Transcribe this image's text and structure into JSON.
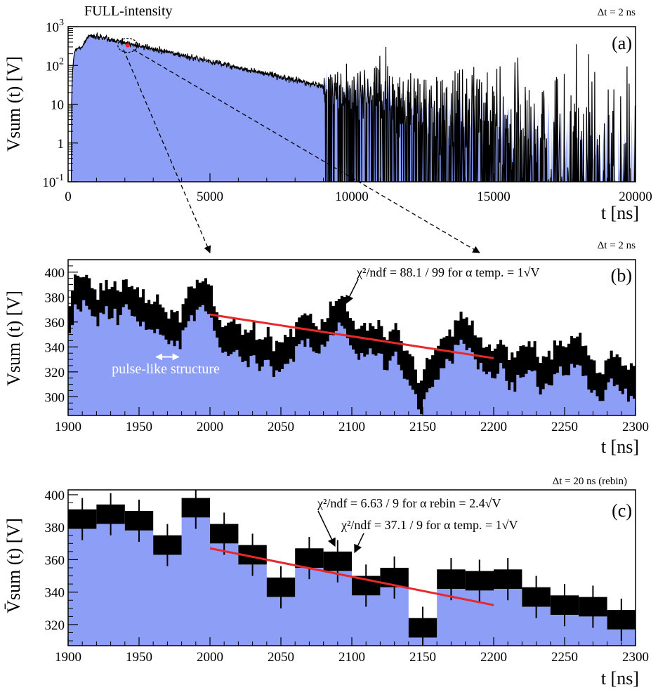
{
  "chart_data": [
    {
      "panel_label": "(a)",
      "type": "area",
      "title": "FULL-intensity",
      "bin_label": "Δt = 2 ns",
      "xlabel": "t [ns]",
      "ylabel": "Vsum (t) [V]",
      "yscale": "log",
      "xlim": [
        0,
        20000
      ],
      "ylim": [
        0.1,
        1000
      ],
      "x_ticks": [
        "0",
        "5000",
        "10000",
        "15000",
        "20000"
      ],
      "y_ticks": [
        "10^-1",
        "1",
        "10",
        "10^2",
        "10^3"
      ],
      "peak": {
        "x": 800,
        "y": 600
      },
      "decay": {
        "x_start": 800,
        "y_start": 600,
        "x_end": 20000,
        "y_end": 0.1,
        "noise_onset_x": 9000
      },
      "zoom_marker": {
        "x": 2100,
        "y": 330
      }
    },
    {
      "panel_label": "(b)",
      "type": "area",
      "bin_label": "Δt = 2 ns",
      "xlabel": "t [ns]",
      "ylabel": "Vsum (t) [V]",
      "xlim": [
        1900,
        2300
      ],
      "ylim": [
        285,
        410
      ],
      "x_ticks": [
        "1900",
        "1950",
        "2000",
        "2050",
        "2100",
        "2150",
        "2200",
        "2250",
        "2300"
      ],
      "y_ticks": [
        "300",
        "320",
        "340",
        "360",
        "380",
        "400"
      ],
      "anchors": [
        [
          1900,
          362
        ],
        [
          1905,
          382
        ],
        [
          1912,
          386
        ],
        [
          1920,
          372
        ],
        [
          1928,
          380
        ],
        [
          1935,
          374
        ],
        [
          1942,
          383
        ],
        [
          1950,
          370
        ],
        [
          1958,
          364
        ],
        [
          1965,
          362
        ],
        [
          1972,
          357
        ],
        [
          1978,
          352
        ],
        [
          1985,
          372
        ],
        [
          1992,
          382
        ],
        [
          2000,
          376
        ],
        [
          2007,
          350
        ],
        [
          2012,
          345
        ],
        [
          2018,
          352
        ],
        [
          2025,
          338
        ],
        [
          2030,
          344
        ],
        [
          2035,
          332
        ],
        [
          2040,
          346
        ],
        [
          2046,
          326
        ],
        [
          2052,
          334
        ],
        [
          2058,
          340
        ],
        [
          2063,
          352
        ],
        [
          2070,
          356
        ],
        [
          2075,
          344
        ],
        [
          2080,
          350
        ],
        [
          2085,
          360
        ],
        [
          2090,
          366
        ],
        [
          2095,
          364
        ],
        [
          2100,
          350
        ],
        [
          2105,
          342
        ],
        [
          2110,
          346
        ],
        [
          2118,
          345
        ],
        [
          2125,
          335
        ],
        [
          2132,
          345
        ],
        [
          2138,
          325
        ],
        [
          2143,
          320
        ],
        [
          2147,
          303
        ],
        [
          2150,
          305
        ],
        [
          2156,
          322
        ],
        [
          2162,
          330
        ],
        [
          2170,
          342
        ],
        [
          2178,
          354
        ],
        [
          2183,
          350
        ],
        [
          2188,
          340
        ],
        [
          2193,
          328
        ],
        [
          2198,
          326
        ],
        [
          2205,
          334
        ],
        [
          2212,
          322
        ],
        [
          2218,
          327
        ],
        [
          2225,
          334
        ],
        [
          2232,
          318
        ],
        [
          2240,
          324
        ],
        [
          2246,
          332
        ],
        [
          2252,
          328
        ],
        [
          2258,
          340
        ],
        [
          2264,
          332
        ],
        [
          2270,
          317
        ],
        [
          2275,
          308
        ],
        [
          2280,
          318
        ],
        [
          2285,
          324
        ],
        [
          2290,
          313
        ],
        [
          2300,
          310
        ]
      ],
      "fit": {
        "x": [
          2000,
          2200
        ],
        "y": [
          366,
          331
        ],
        "label": "χ²/ndf = 88.1 / 99  for  α temp. = 1√V",
        "chi2": 88.1,
        "ndf": 99
      },
      "annotation": "pulse-like structure",
      "pulse_x": [
        1962,
        1978
      ],
      "pulse_y": 332
    },
    {
      "panel_label": "(c)",
      "type": "bar",
      "bin_label": "Δt = 20 ns (rebin)",
      "xlabel": "t [ns]",
      "ylabel": "V̄sum (t) [V]",
      "xlim": [
        1900,
        2300
      ],
      "ylim": [
        307,
        403
      ],
      "x_ticks": [
        "1900",
        "1950",
        "2000",
        "2050",
        "2100",
        "2150",
        "2200",
        "2250",
        "2300"
      ],
      "y_ticks": [
        "320",
        "340",
        "360",
        "380",
        "400"
      ],
      "bin_edges": [
        1900,
        1920,
        1940,
        1960,
        1980,
        2000,
        2020,
        2040,
        2060,
        2080,
        2100,
        2120,
        2140,
        2160,
        2180,
        2200,
        2220,
        2240,
        2260,
        2280,
        2300
      ],
      "values": [
        385,
        388,
        384,
        369,
        392,
        376,
        363,
        343,
        361,
        359,
        344,
        349,
        318,
        348,
        347,
        348,
        337,
        332,
        331,
        323
      ],
      "stat_errors": [
        6,
        6,
        6,
        6,
        6,
        6,
        6,
        6,
        6,
        6,
        6,
        6,
        6,
        6,
        6,
        6,
        6,
        6,
        6,
        6
      ],
      "total_errors": [
        13,
        13,
        13,
        13,
        13,
        13,
        13,
        13,
        13,
        13,
        13,
        13,
        13,
        13,
        13,
        13,
        13,
        13,
        13,
        13
      ],
      "fit": {
        "x": [
          2000,
          2200
        ],
        "y": [
          367,
          332
        ]
      },
      "fit_labels": [
        {
          "text": "χ²/ndf = 6.63 / 9  for  α rebin = 2.4√V",
          "chi2": 6.63,
          "ndf": 9
        },
        {
          "text": "χ²/ndf = 37.1 / 9  for  α temp. = 1√V",
          "chi2": 37.1,
          "ndf": 9
        }
      ]
    }
  ],
  "colors": {
    "fill": "#8c9ef6",
    "line": "#000000",
    "fit": "#e8282b"
  }
}
